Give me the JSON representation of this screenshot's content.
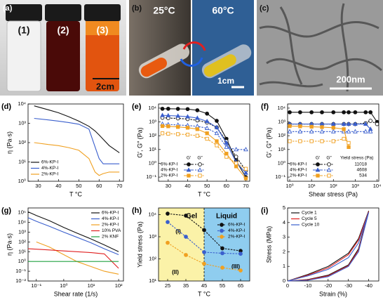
{
  "photos": [
    {
      "label": "(a)",
      "vials": [
        "(1)",
        "(2)",
        "(3)"
      ],
      "scale_bar": "2cm"
    },
    {
      "label": "(b)",
      "temperatures": [
        "25°C",
        "60°C"
      ],
      "scale_bar": "1cm"
    },
    {
      "label": "(c)",
      "scale_bar": "200nm"
    }
  ],
  "chart_data": [
    {
      "type": "line",
      "label": "(d)",
      "xlabel": "T °C",
      "ylabel": "η (Pa·s)",
      "ylog": true,
      "legend": "lower left",
      "xlim": [
        25,
        72
      ],
      "xticks": [
        30,
        40,
        50,
        60,
        70
      ],
      "ylim": [
        1,
        10000
      ],
      "yticks": [
        {
          "value": 1,
          "label": "10⁰"
        },
        {
          "value": 10,
          "label": "10¹"
        },
        {
          "value": 100,
          "label": "10²"
        },
        {
          "value": 1000,
          "label": "10³"
        },
        {
          "value": 10000,
          "label": "10⁴"
        }
      ],
      "x": [
        28,
        35,
        40,
        45,
        50,
        55,
        58,
        60,
        62,
        65,
        70
      ],
      "series": [
        {
          "name": "6%-KP-I",
          "color": "#111111",
          "values": [
            8000,
            5000,
            3500,
            2200,
            1300,
            700,
            400,
            250,
            150,
            70,
            30
          ]
        },
        {
          "name": "4%-KP-I",
          "color": "#3a5fcd",
          "values": [
            1800,
            1500,
            1300,
            1100,
            900,
            500,
            60,
            15,
            8,
            8,
            8
          ]
        },
        {
          "name": "2%-KP-I",
          "color": "#f0a020",
          "values": [
            100,
            80,
            70,
            55,
            40,
            15,
            3,
            2,
            2.5,
            3,
            3
          ]
        }
      ]
    },
    {
      "type": "line",
      "label": "(e)",
      "xlabel": "T °C",
      "ylabel": "G′, G″ (Pa)",
      "ylog": true,
      "legend": "lower left",
      "legend_columns": [
        "G′",
        "G″"
      ],
      "xlim": [
        25,
        72
      ],
      "xticks": [
        30,
        40,
        50,
        60,
        70
      ],
      "ylim": [
        0.05,
        20000
      ],
      "yticks": [
        {
          "value": 0.1,
          "label": "10⁻¹"
        },
        {
          "value": 1,
          "label": "10⁰"
        },
        {
          "value": 10,
          "label": "10¹"
        },
        {
          "value": 100,
          "label": "10²"
        },
        {
          "value": 1000,
          "label": "10³"
        },
        {
          "value": 10000,
          "label": "10⁴"
        }
      ],
      "x": [
        27,
        30,
        35,
        40,
        45,
        50,
        55,
        60,
        65,
        70
      ],
      "series": [
        {
          "name": "6%-KP-I",
          "color": "#111111",
          "marker": "circle",
          "storage": [
            9000,
            9000,
            8800,
            8500,
            7000,
            4000,
            1200,
            60,
            1.5,
            0.1
          ],
          "loss": [
            2000,
            1900,
            1800,
            1600,
            1300,
            900,
            400,
            40,
            3,
            0.3
          ]
        },
        {
          "name": "4%-KP-I",
          "color": "#3a5fcd",
          "marker": "triangle",
          "storage": [
            3000,
            2900,
            2700,
            2400,
            1900,
            1100,
            400,
            30,
            1.2,
            0.2
          ],
          "loss": [
            700,
            650,
            600,
            550,
            480,
            350,
            150,
            15,
            10,
            10
          ]
        },
        {
          "name": "2%-KP-I",
          "color": "#f0a020",
          "marker": "square",
          "storage": [
            500,
            480,
            430,
            380,
            300,
            150,
            40,
            5,
            0.6,
            0.08
          ],
          "loss": [
            150,
            140,
            130,
            120,
            100,
            60,
            20,
            3,
            1,
            0.4
          ]
        }
      ]
    },
    {
      "type": "line",
      "label": "(f)",
      "xlabel": "Shear stress (Pa)",
      "ylabel": "G′, G″ (Pa)",
      "xlog": true,
      "ylog": true,
      "legend": "lower left",
      "legend_columns": [
        "G′",
        "G″",
        "Yield stress (Pa)"
      ],
      "xlim": [
        0.8,
        12000
      ],
      "xticks": [
        {
          "value": 1,
          "label": "10⁰"
        },
        {
          "value": 10,
          "label": "10¹"
        },
        {
          "value": 100,
          "label": "10²"
        },
        {
          "value": 1000,
          "label": "10³"
        },
        {
          "value": 10000,
          "label": "10⁴"
        }
      ],
      "ylim": [
        0.05,
        20000
      ],
      "yticks": [
        {
          "value": 0.1,
          "label": "10⁻¹"
        },
        {
          "value": 1,
          "label": "10⁰"
        },
        {
          "value": 10,
          "label": "10¹"
        },
        {
          "value": 100,
          "label": "10²"
        },
        {
          "value": 1000,
          "label": "10³"
        },
        {
          "value": 10000,
          "label": "10⁴"
        }
      ],
      "x": [
        1,
        3,
        10,
        30,
        100,
        300,
        500,
        1000,
        3000,
        5000,
        10000
      ],
      "series": [
        {
          "name": "6%-KP-I",
          "color": "#111111",
          "marker": "circle",
          "yield_stress": 11018,
          "storage": [
            5000,
            5000,
            5000,
            5000,
            5000,
            5000,
            5000,
            5000,
            5000,
            5000,
            1000
          ],
          "loss": [
            700,
            700,
            700,
            700,
            700,
            700,
            700,
            700,
            800,
            1200,
            700
          ]
        },
        {
          "name": "4%-KP-I",
          "color": "#3a5fcd",
          "marker": "triangle",
          "yield_stress": 4608,
          "storage": [
            700,
            700,
            700,
            700,
            700,
            700,
            700,
            700,
            700,
            300,
            null
          ],
          "loss": [
            200,
            200,
            200,
            200,
            200,
            200,
            200,
            200,
            200,
            200,
            null
          ]
        },
        {
          "name": "2%-KP-I",
          "color": "#f0a020",
          "marker": "square",
          "yield_stress": 534,
          "storage": [
            500,
            480,
            450,
            420,
            380,
            300,
            15,
            null,
            null,
            null,
            null
          ],
          "loss": [
            40,
            40,
            40,
            40,
            40,
            60,
            30,
            null,
            null,
            null,
            null
          ]
        }
      ]
    },
    {
      "type": "line",
      "label": "(g)",
      "xlabel": "Shear rate (1/s)",
      "ylabel": "η (Pa·s)",
      "xlog": true,
      "ylog": true,
      "legend": "upper right",
      "xlim": [
        0.05,
        150
      ],
      "xticks": [
        {
          "value": 0.1,
          "label": "10⁻¹"
        },
        {
          "value": 1,
          "label": "10⁰"
        },
        {
          "value": 10,
          "label": "10¹"
        },
        {
          "value": 100,
          "label": "10²"
        }
      ],
      "ylim": [
        0.01,
        300000
      ],
      "yticks": [
        {
          "value": 0.01,
          "label": "10⁻²"
        },
        {
          "value": 0.1,
          "label": "10⁻¹"
        },
        {
          "value": 1,
          "label": "10⁰"
        },
        {
          "value": 10,
          "label": "10¹"
        },
        {
          "value": 100,
          "label": "10²"
        },
        {
          "value": 1000,
          "label": "10³"
        },
        {
          "value": 10000,
          "label": "10⁴"
        },
        {
          "value": 100000,
          "label": "10⁵"
        }
      ],
      "x": [
        0.05,
        0.1,
        0.3,
        1,
        3,
        10,
        30,
        100
      ],
      "series": [
        {
          "name": "6%-KP-I",
          "color": "#111111",
          "values": [
            120000,
            50000,
            15000,
            3000,
            800,
            200,
            50,
            10
          ]
        },
        {
          "name": "4%-KP-I",
          "color": "#3a5fcd",
          "values": [
            30000,
            13000,
            4000,
            1000,
            300,
            80,
            20,
            5
          ]
        },
        {
          "name": "2%-KP-I",
          "color": "#f0a020",
          "values": [
            null,
            100,
            30,
            5,
            1,
            0.3,
            0.1,
            0.05
          ]
        },
        {
          "name": "10% PVA",
          "color": "#e02020",
          "values": [
            20,
            18,
            15,
            12,
            10,
            8,
            6,
            0.2
          ]
        },
        {
          "name": "2% KNF",
          "color": "#20a040",
          "values": [
            1,
            1,
            1,
            1,
            1,
            1,
            1,
            1
          ]
        }
      ]
    },
    {
      "type": "line",
      "label": "(h)",
      "xlabel": "T °C",
      "ylabel": "Yield stress (Pa)",
      "ylog": true,
      "legend": "upper right",
      "line_style": "dashed",
      "regions": [
        {
          "label": "Gel",
          "color": "#fbf2a8"
        },
        {
          "label": "Liquid",
          "color": "#8fcdef"
        }
      ],
      "annotations": [
        "(I)",
        "(II)",
        "(III)"
      ],
      "xlim": [
        20,
        70
      ],
      "xticks": [
        25,
        35,
        45,
        55,
        65
      ],
      "ylim": [
        10,
        20000
      ],
      "yticks": [
        {
          "value": 10,
          "label": "10¹"
        },
        {
          "value": 100,
          "label": "10²"
        },
        {
          "value": 1000,
          "label": "10³"
        },
        {
          "value": 10000,
          "label": "10⁴"
        }
      ],
      "x": [
        25,
        35,
        45,
        55,
        65
      ],
      "series": [
        {
          "name": "6%-KP-I",
          "color": "#111111",
          "marker": "circle",
          "values": [
            11018,
            9000,
            2000,
            300,
            230
          ]
        },
        {
          "name": "4%-KP-I",
          "color": "#3a5fcd",
          "marker": "circle",
          "values": [
            4608,
            1000,
            200,
            180,
            170
          ]
        },
        {
          "name": "2%-KP-I",
          "color": "#f0a020",
          "marker": "circle",
          "values": [
            534,
            150,
            60,
            40,
            30
          ]
        }
      ]
    },
    {
      "type": "line",
      "label": "(i)",
      "xlabel": "Strain (%)",
      "ylabel": "Stress (MPa)",
      "legend": "upper left",
      "xlim": [
        0,
        -45
      ],
      "xticks": [
        0,
        -10,
        -20,
        -30,
        -40
      ],
      "ylim": [
        0,
        5
      ],
      "yticks": [
        0,
        1,
        2,
        3,
        4,
        5
      ],
      "x": [
        0,
        -10,
        -20,
        -30,
        -35,
        -40,
        -35,
        -30,
        -20,
        -10,
        0
      ],
      "series": [
        {
          "name": "Cycle 1",
          "color": "#111111",
          "values": [
            0,
            0.45,
            1.0,
            1.9,
            2.9,
            4.8,
            2.2,
            1.1,
            0.4,
            0.1,
            0
          ]
        },
        {
          "name": "Cycle 5",
          "color": "#e02020",
          "values": [
            0,
            0.4,
            0.9,
            1.8,
            2.8,
            4.75,
            2.1,
            1.05,
            0.35,
            0.08,
            0
          ]
        },
        {
          "name": "Cycle 10",
          "color": "#3a5fcd",
          "values": [
            0,
            0.35,
            0.8,
            1.6,
            2.6,
            4.7,
            2.0,
            1.0,
            0.3,
            0.05,
            0
          ]
        }
      ]
    }
  ]
}
